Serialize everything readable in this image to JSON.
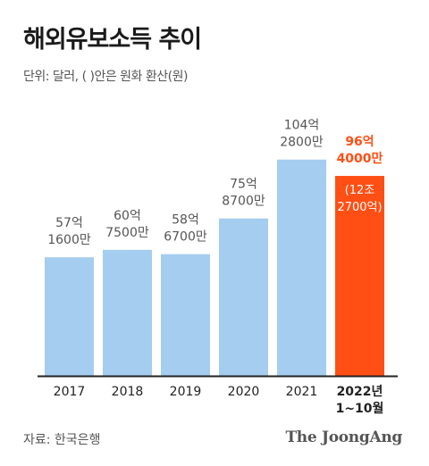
{
  "page": {
    "title": "해외유보소득 추이",
    "subtitle": "단위: 달러, ( )안은 원화 환산(원)",
    "source": "자료: 한국은행",
    "brand": "The JoongAng"
  },
  "colors": {
    "bar": "#a5cdef",
    "highlight_bar": "#ff4f14",
    "label": "#555555",
    "highlight_label": "#ff4f14",
    "note_text": "#ffffff",
    "axis": "#222222"
  },
  "chart_data": {
    "type": "bar",
    "title": "해외유보소득 추이",
    "unit_note": "단위: 달러, ( )안은 원화 환산(원)",
    "categories": [
      "2017",
      "2018",
      "2019",
      "2020",
      "2021",
      "2022년\n1~10월"
    ],
    "values": [
      5716000000,
      6075000000,
      5867000000,
      7587000000,
      10428000000,
      9640000000
    ],
    "value_labels": [
      "57억\n1600만",
      "60억\n7500만",
      "58억\n6700만",
      "75억\n8700만",
      "104억\n2800만",
      "96억\n4000만"
    ],
    "highlight_index": 5,
    "annotation": {
      "index": 5,
      "text": "(12조\n2700억)"
    },
    "ylim": [
      0,
      13000000000
    ],
    "grid": false,
    "legend": "none"
  }
}
